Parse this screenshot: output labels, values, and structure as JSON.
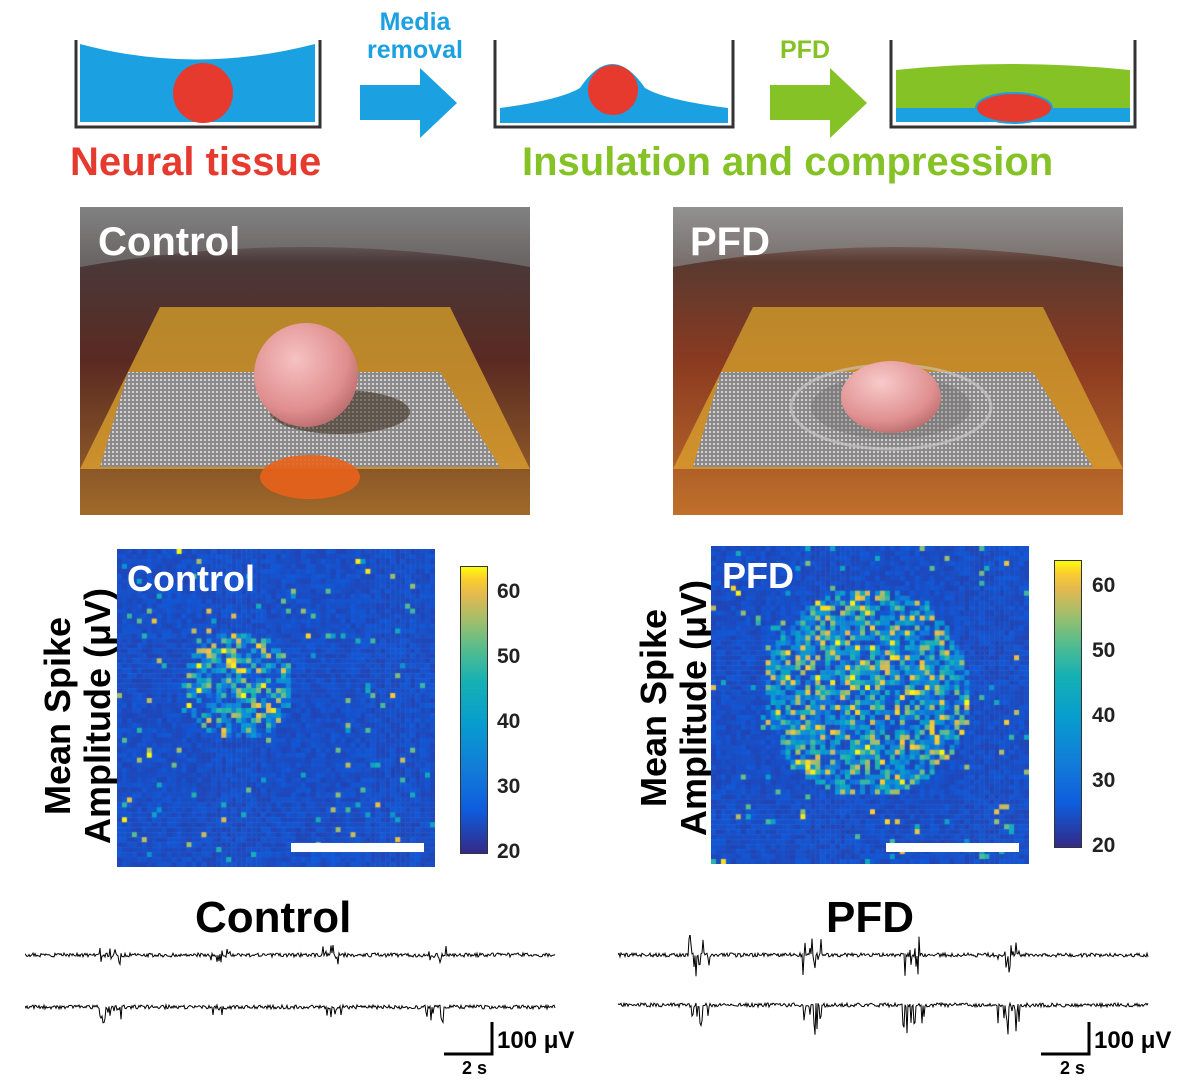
{
  "schematic": {
    "step1_label": "Neural tissue",
    "arrow1_label_line1": "Media",
    "arrow1_label_line2": "removal",
    "arrow2_label": "PFD",
    "step23_label": "Insulation and compression",
    "colors": {
      "media": "#1ba0e2",
      "tissue": "#e63a2e",
      "pfd": "#84c225"
    }
  },
  "renders": {
    "left_title": "Control",
    "right_title": "PFD"
  },
  "heatmaps": {
    "ylabel_line1": "Mean Spike",
    "ylabel_line2": "Amplitude (μV)",
    "left_title": "Control",
    "right_title": "PFD",
    "colorbar_ticks": [
      "60",
      "50",
      "40",
      "30",
      "20"
    ],
    "colorbar_range": [
      20,
      64
    ]
  },
  "traces": {
    "left_title": "Control",
    "right_title": "PFD",
    "scale_amplitude": "100 μV",
    "scale_time": "2 s"
  }
}
